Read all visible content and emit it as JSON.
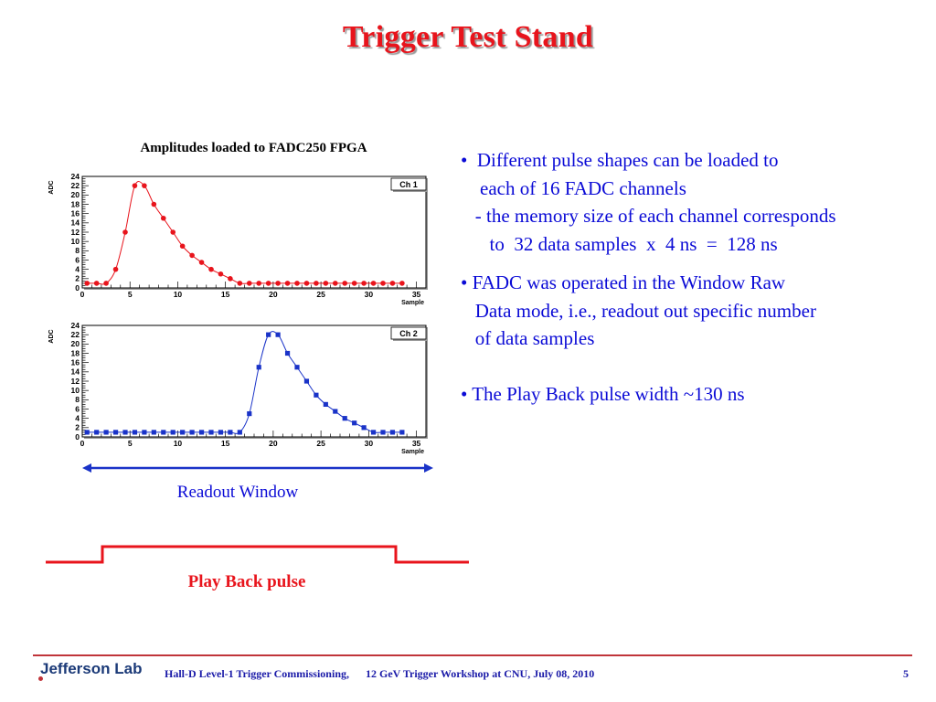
{
  "slide": {
    "title": "Trigger Test Stand",
    "chart_caption": "Amplitudes loaded to FADC250 FPGA",
    "bullets": [
      {
        "lines": [
          "•  Different pulse shapes can be loaded to",
          "    each of 16 FADC channels",
          "   - the memory size of each channel corresponds",
          "      to  32 data samples  x  4 ns  =  128 ns"
        ]
      },
      {
        "lines": [
          "• FADC was operated in the Window Raw",
          "   Data mode, i.e., readout out specific number",
          "   of data samples"
        ]
      },
      {
        "lines": [
          "• The Play Back pulse width ~130 ns"
        ]
      }
    ],
    "readout_label": "Readout Window",
    "pulse_label": "Play Back pulse",
    "footer": {
      "logo": "Jefferson Lab",
      "text": "Hall-D Level-1 Trigger Commissioning,      12 GeV Trigger Workshop at CNU, July 08, 2010",
      "page": "5"
    },
    "colors": {
      "title": "#e8141c",
      "body": "#0b0bd6",
      "ch1": "#e8141c",
      "ch2": "#1a33c8",
      "arrow": "#1a33c8",
      "pulse": "#e8141c"
    }
  },
  "chart_data": [
    {
      "type": "scatter",
      "title": "Ch 1",
      "xlabel": "Sample",
      "ylabel": "ADC",
      "xlim": [
        0,
        36
      ],
      "ylim": [
        0,
        24
      ],
      "xticks": [
        0,
        5,
        10,
        15,
        20,
        25,
        30,
        35
      ],
      "yticks": [
        0,
        2,
        4,
        6,
        8,
        10,
        12,
        14,
        16,
        18,
        20,
        22,
        24
      ],
      "marker": "circle",
      "color": "#e8141c",
      "x": [
        0,
        1,
        2,
        3,
        4,
        5,
        6,
        7,
        8,
        9,
        10,
        11,
        12,
        13,
        14,
        15,
        16,
        17,
        18,
        19,
        20,
        21,
        22,
        23,
        24,
        25,
        26,
        27,
        28,
        29,
        30,
        31,
        32,
        33
      ],
      "y": [
        1,
        1,
        1,
        4,
        12,
        22,
        22,
        18,
        15,
        12,
        9,
        7,
        5.5,
        4,
        3,
        2,
        1,
        1,
        1,
        1,
        1,
        1,
        1,
        1,
        1,
        1,
        1,
        1,
        1,
        1,
        1,
        1,
        1,
        1
      ]
    },
    {
      "type": "scatter",
      "title": "Ch 2",
      "xlabel": "Sample",
      "ylabel": "ADC",
      "xlim": [
        0,
        36
      ],
      "ylim": [
        0,
        24
      ],
      "xticks": [
        0,
        5,
        10,
        15,
        20,
        25,
        30,
        35
      ],
      "yticks": [
        0,
        2,
        4,
        6,
        8,
        10,
        12,
        14,
        16,
        18,
        20,
        22,
        24
      ],
      "marker": "square",
      "color": "#1a33c8",
      "x": [
        0,
        1,
        2,
        3,
        4,
        5,
        6,
        7,
        8,
        9,
        10,
        11,
        12,
        13,
        14,
        15,
        16,
        17,
        18,
        19,
        20,
        21,
        22,
        23,
        24,
        25,
        26,
        27,
        28,
        29,
        30,
        31,
        32,
        33
      ],
      "y": [
        1,
        1,
        1,
        1,
        1,
        1,
        1,
        1,
        1,
        1,
        1,
        1,
        1,
        1,
        1,
        1,
        1,
        5,
        15,
        22,
        22,
        18,
        15,
        12,
        9,
        7,
        5.5,
        4,
        3,
        2,
        1,
        1,
        1,
        1
      ]
    }
  ]
}
